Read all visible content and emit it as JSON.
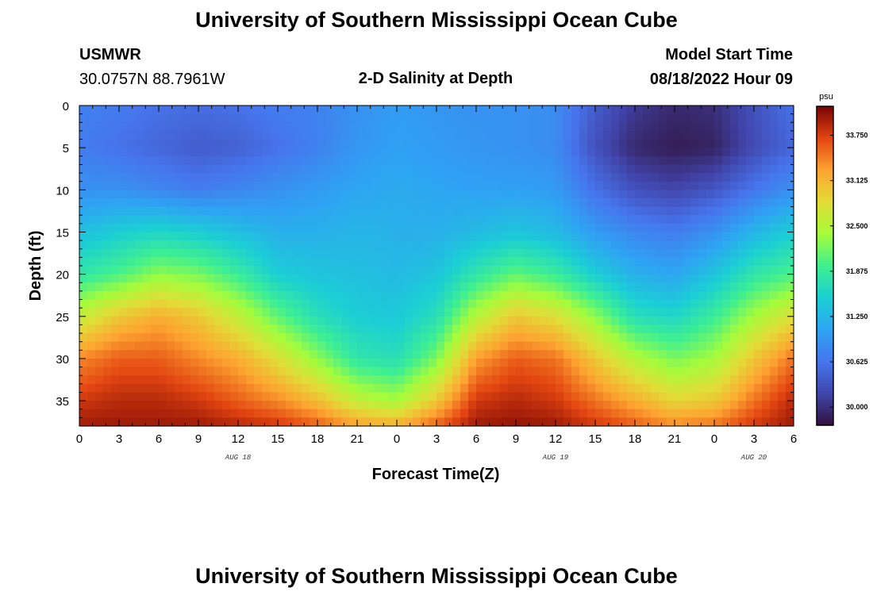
{
  "header": {
    "title": "University of Southern Mississippi Ocean Cube",
    "station": "USMWR",
    "coords": "30.0757N  88.7961W",
    "subtitle": "2-D Salinity at Depth",
    "model_label": "Model Start Time",
    "model_time": "08/18/2022 Hour 09",
    "footer_title": "University of Southern Mississippi Ocean Cube"
  },
  "chart_data": {
    "type": "heatmap",
    "title": "2-D Salinity at Depth",
    "xlabel": "Forecast Time(Z)",
    "ylabel": "Depth (ft)",
    "x_tick_labels": [
      "0",
      "3",
      "6",
      "9",
      "12",
      "15",
      "18",
      "21",
      "0",
      "3",
      "6",
      "9",
      "12",
      "15",
      "18",
      "21",
      "0",
      "3",
      "6"
    ],
    "x_range_hours": [
      0,
      54
    ],
    "date_labels": [
      {
        "label": "AUG 18",
        "hour": 12
      },
      {
        "label": "AUG 19",
        "hour": 36
      },
      {
        "label": "AUG 20",
        "hour": 51
      }
    ],
    "y_ticks": [
      0,
      5,
      10,
      15,
      20,
      25,
      30,
      35
    ],
    "y_range": [
      0,
      38
    ],
    "y_inverted": true,
    "colorbar": {
      "unit": "psu",
      "ticks": [
        "33.750",
        "33.125",
        "32.500",
        "31.875",
        "31.250",
        "30.625",
        "30.000"
      ],
      "tick_values": [
        33.75,
        33.125,
        32.5,
        31.875,
        31.25,
        30.625,
        30.0
      ],
      "range": [
        29.75,
        34.15
      ],
      "colormap": "turbo"
    },
    "salinity_field": {
      "hours": [
        0,
        3,
        6,
        9,
        12,
        15,
        18,
        21,
        24,
        27,
        30,
        33,
        36,
        39,
        42,
        45,
        48,
        51,
        54
      ],
      "depths": [
        0,
        5,
        10,
        15,
        20,
        25,
        30,
        35,
        38
      ],
      "values_by_depth": [
        [
          30.75,
          30.68,
          30.6,
          30.55,
          30.6,
          30.7,
          30.75,
          30.9,
          31.0,
          30.95,
          30.9,
          30.9,
          30.85,
          30.4,
          30.1,
          29.95,
          30.0,
          30.3,
          30.6
        ],
        [
          30.7,
          30.6,
          30.5,
          30.4,
          30.45,
          30.6,
          30.75,
          30.95,
          31.05,
          31.0,
          30.95,
          30.9,
          30.85,
          30.3,
          29.95,
          29.85,
          29.9,
          30.25,
          30.5
        ],
        [
          30.9,
          30.9,
          30.8,
          30.7,
          30.8,
          30.9,
          31.0,
          31.1,
          31.15,
          31.1,
          31.05,
          31.05,
          31.0,
          30.6,
          30.3,
          30.2,
          30.35,
          30.65,
          30.9
        ],
        [
          31.35,
          31.5,
          31.6,
          31.5,
          31.35,
          31.2,
          31.2,
          31.25,
          31.2,
          31.2,
          31.3,
          31.4,
          31.3,
          31.0,
          30.8,
          30.7,
          30.9,
          31.25,
          31.5
        ],
        [
          31.8,
          32.0,
          32.3,
          32.2,
          31.9,
          31.5,
          31.4,
          31.35,
          31.3,
          31.4,
          31.8,
          32.1,
          31.9,
          31.5,
          31.2,
          31.1,
          31.4,
          31.8,
          32.0
        ],
        [
          32.6,
          33.0,
          33.2,
          33.0,
          32.6,
          32.1,
          31.7,
          31.5,
          31.45,
          31.7,
          32.5,
          33.0,
          32.8,
          32.3,
          31.7,
          31.6,
          31.9,
          32.4,
          32.8
        ],
        [
          33.4,
          33.6,
          33.6,
          33.4,
          33.2,
          32.8,
          32.3,
          31.8,
          31.7,
          32.2,
          33.3,
          33.6,
          33.5,
          33.0,
          32.5,
          32.2,
          32.4,
          33.0,
          33.5
        ],
        [
          33.8,
          33.9,
          33.9,
          33.8,
          33.6,
          33.4,
          33.1,
          32.6,
          32.4,
          33.0,
          33.8,
          33.9,
          33.8,
          33.5,
          33.2,
          32.9,
          33.0,
          33.5,
          33.9
        ],
        [
          34.0,
          34.0,
          34.0,
          34.0,
          33.9,
          33.8,
          33.6,
          33.3,
          33.2,
          33.6,
          34.0,
          34.05,
          34.0,
          33.8,
          33.6,
          33.4,
          33.5,
          33.8,
          34.0
        ]
      ]
    },
    "grid": false
  }
}
